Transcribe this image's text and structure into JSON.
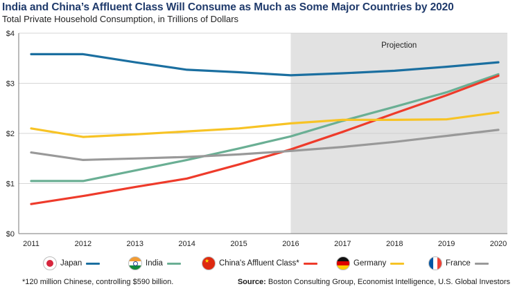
{
  "title": "India and China’s Affluent Class Will Consume as Much as Some Major Countries by 2020",
  "subtitle": "Total Private Household Consumption, in Trillions of Dollars",
  "footnote": "*120 million Chinese, controlling $590 billion.",
  "source": {
    "label": "Source:",
    "text": "Boston Consulting Group, Economist Intelligence, U.S. Global Investors"
  },
  "chart_data": {
    "type": "line",
    "title": "India and China’s Affluent Class Will Consume as Much as Some Major Countries by 2020",
    "subtitle": "Total Private Household Consumption, in Trillions of Dollars",
    "x": [
      2011,
      2012,
      2013,
      2014,
      2015,
      2016,
      2017,
      2018,
      2019,
      2020
    ],
    "xlabel": "",
    "ylabel": "",
    "ylim": [
      0,
      4
    ],
    "yticks": [
      "$0",
      "$1",
      "$2",
      "$3",
      "$4"
    ],
    "grid": "horizontal",
    "projection": {
      "label": "Projection",
      "from": 2016,
      "to": 2020
    },
    "legend_position": "bottom",
    "series": [
      {
        "name": "Japan",
        "color": "#1b6fa0",
        "values": [
          3.58,
          3.58,
          3.42,
          3.27,
          3.22,
          3.16,
          3.2,
          3.25,
          3.33,
          3.42
        ]
      },
      {
        "name": "India",
        "color": "#6aaf94",
        "values": [
          1.05,
          1.05,
          1.26,
          1.47,
          1.7,
          1.94,
          2.25,
          2.53,
          2.82,
          3.18
        ]
      },
      {
        "name": "China's Affluent Class*",
        "color": "#ee3b2b",
        "values": [
          0.59,
          0.75,
          0.93,
          1.1,
          1.38,
          1.68,
          2.03,
          2.4,
          2.76,
          3.15
        ]
      },
      {
        "name": "Germany",
        "color": "#f7c325",
        "values": [
          2.1,
          1.93,
          1.98,
          2.04,
          2.1,
          2.2,
          2.27,
          2.27,
          2.28,
          2.42
        ]
      },
      {
        "name": "France",
        "color": "#999999",
        "values": [
          1.62,
          1.47,
          1.5,
          1.53,
          1.58,
          1.65,
          1.73,
          1.83,
          1.95,
          2.07
        ]
      }
    ]
  },
  "legend": [
    {
      "label": "Japan",
      "icon": "japan-flag-icon",
      "color": "#1b6fa0"
    },
    {
      "label": "India",
      "icon": "india-flag-icon",
      "color": "#6aaf94"
    },
    {
      "label": "China's Affluent Class*",
      "icon": "china-flag-icon",
      "color": "#ee3b2b"
    },
    {
      "label": "Germany",
      "icon": "germany-flag-icon",
      "color": "#f7c325"
    },
    {
      "label": "France",
      "icon": "france-flag-icon",
      "color": "#999999"
    }
  ]
}
